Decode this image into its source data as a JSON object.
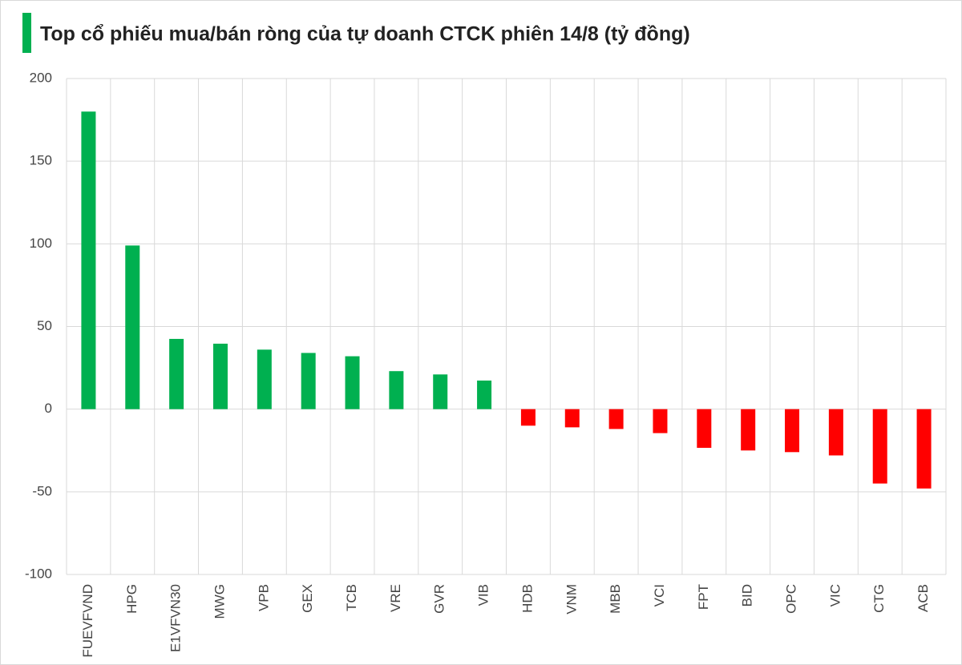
{
  "chart_data": {
    "type": "bar",
    "title": "Top cổ phiếu mua/bán ròng của tự doanh CTCK phiên 14/8 (tỷ đồng)",
    "categories": [
      "FUEVFVND",
      "HPG",
      "E1VFVN30",
      "MWG",
      "VPB",
      "GEX",
      "TCB",
      "VRE",
      "GVR",
      "VIB",
      "HDB",
      "VNM",
      "MBB",
      "VCI",
      "FPT",
      "BID",
      "OPC",
      "VIC",
      "CTG",
      "ACB"
    ],
    "values": [
      180,
      99,
      42.5,
      39.6,
      36,
      34,
      32,
      23,
      21,
      17.3,
      -10,
      -11,
      -12,
      -14.5,
      -23.4,
      -25,
      -26,
      -28,
      -45,
      -48
    ],
    "positive_color": "#00b050",
    "negative_color": "#ff0000",
    "ylim": [
      -100,
      200
    ],
    "yticks": [
      -100,
      -50,
      0,
      50,
      100,
      150,
      200
    ],
    "grid": true
  }
}
